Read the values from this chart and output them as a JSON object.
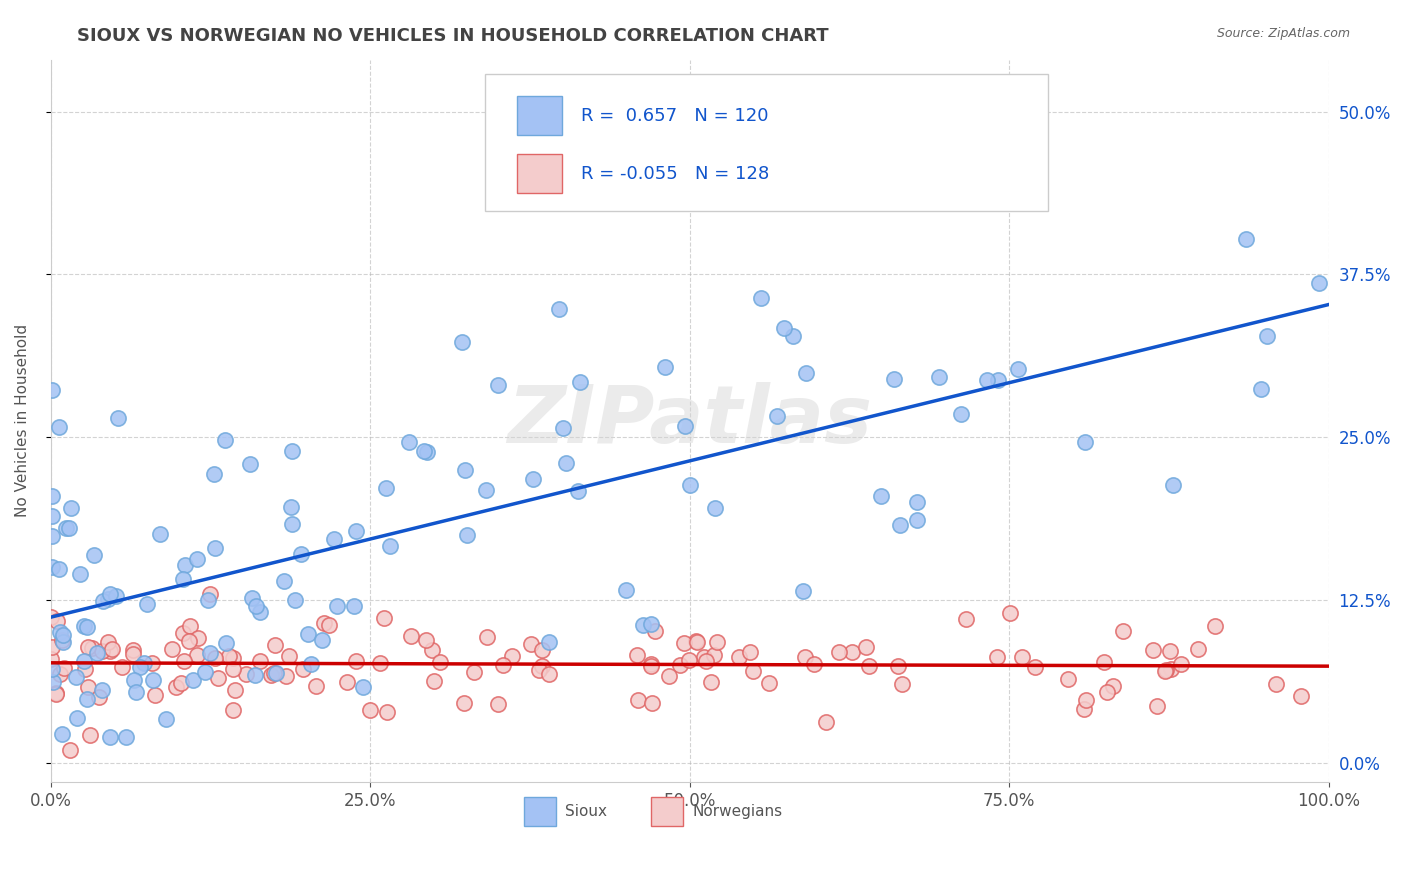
{
  "title": "SIOUX VS NORWEGIAN NO VEHICLES IN HOUSEHOLD CORRELATION CHART",
  "source_text": "Source: ZipAtlas.com",
  "ylabel": "No Vehicles in Household",
  "xlim": [
    0.0,
    1.0
  ],
  "ylim": [
    -0.015,
    0.54
  ],
  "xticks": [
    0.0,
    0.25,
    0.5,
    0.75,
    1.0
  ],
  "xticklabels": [
    "0.0%",
    "25.0%",
    "50.0%",
    "75.0%",
    "100.0%"
  ],
  "yticks": [
    0.0,
    0.125,
    0.25,
    0.375,
    0.5
  ],
  "yticklabels": [
    "0.0%",
    "12.5%",
    "25.0%",
    "37.5%",
    "50.0%"
  ],
  "sioux_color": "#a4c2f4",
  "sioux_edge_color": "#6fa8dc",
  "norwegian_color": "#f4cccc",
  "norwegian_edge_color": "#e06666",
  "sioux_line_color": "#1155cc",
  "norwegian_line_color": "#cc0000",
  "R_sioux": 0.657,
  "N_sioux": 120,
  "R_norwegian": -0.055,
  "N_norwegian": 128,
  "watermark": "ZIPatlas",
  "background_color": "#ffffff",
  "grid_color": "#b7b7b7",
  "legend_blue": "#1155cc",
  "right_axis_color": "#1155cc",
  "title_color": "#434343",
  "source_color": "#666666"
}
